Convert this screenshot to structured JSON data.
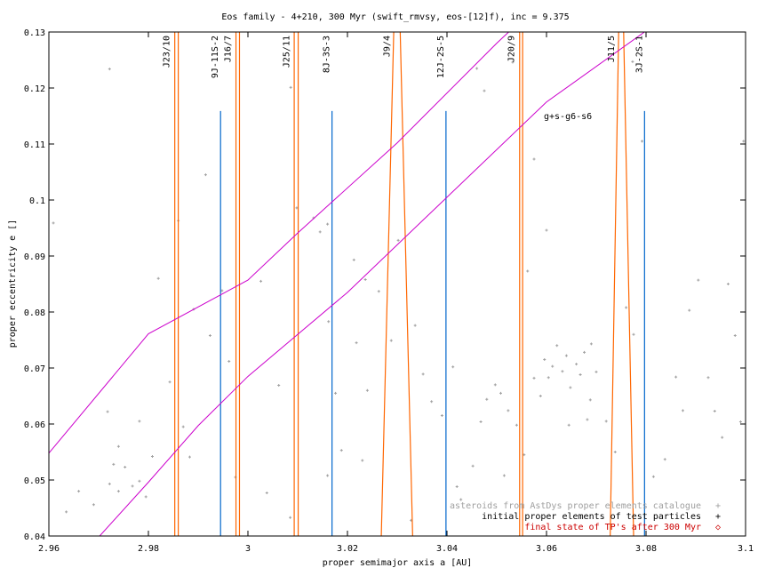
{
  "chart_data": {
    "type": "scatter",
    "title": "Eos family - 4+210, 300 Myr (swift_rmvsy, eos-[12]f), inc = 9.375",
    "xlabel": "proper semimajor axis a [AU]",
    "ylabel": "proper eccentricity e []",
    "xlim": [
      2.96,
      3.1
    ],
    "ylim": [
      0.04,
      0.13
    ],
    "x_ticks": [
      2.96,
      2.98,
      3.0,
      3.02,
      3.04,
      3.06,
      3.08,
      3.1
    ],
    "x_tick_labels": [
      "2.96",
      "2.98",
      "3",
      "3.02",
      "3.04",
      "3.06",
      "3.08",
      "3.1"
    ],
    "y_ticks": [
      0.04,
      0.05,
      0.06,
      0.07,
      0.08,
      0.09,
      0.1,
      0.11,
      0.12,
      0.13
    ],
    "y_tick_labels": [
      "0.04",
      "0.05",
      "0.06",
      "0.07",
      "0.08",
      "0.09",
      "0.1",
      "0.11",
      "0.12",
      "0.13"
    ],
    "grid": false,
    "legend_position": "bottom-right",
    "legend": [
      {
        "label": "asteroids from AstDys proper elements catalogue",
        "symbol": "+",
        "color": "#a0a0a0"
      },
      {
        "label": "initial proper elements of test particles",
        "symbol": "+",
        "color": "#000000"
      },
      {
        "label": "final state of TP's after 300 Myr",
        "symbol": "◇",
        "color": "#cc0000"
      }
    ],
    "resonances_three_body": [
      {
        "label": "9J-11S-2",
        "a": 2.9945,
        "e_max": 0.1159
      },
      {
        "label": "8J-3S-3",
        "a": 3.0169,
        "e_max": 0.1159
      },
      {
        "label": "12J-2S-5",
        "a": 3.0398,
        "e_max": 0.1159
      },
      {
        "label": "3J-2S-1",
        "a": 3.0797,
        "e_max": 0.1159
      }
    ],
    "resonances_mean_motion": [
      {
        "label": "J23/10",
        "a_left": [
          2.9853,
          2.9853
        ],
        "a_right": [
          2.986,
          2.986
        ]
      },
      {
        "label": "J16/7",
        "a_left": [
          2.9976,
          2.9976
        ],
        "a_right": [
          2.9983,
          2.9983
        ]
      },
      {
        "label": "J25/11",
        "a_left": [
          3.0093,
          3.0093
        ],
        "a_right": [
          3.0101,
          3.0101
        ]
      },
      {
        "label": "J9/4",
        "a_left": [
          3.0293,
          3.0268
        ],
        "a_right": [
          3.0306,
          3.0331
        ]
      },
      {
        "label": "J20/9",
        "a_left": [
          3.0546,
          3.0546
        ],
        "a_right": [
          3.0552,
          3.0552
        ]
      },
      {
        "label": "J11/5",
        "a_left": [
          3.0745,
          3.0728
        ],
        "a_right": [
          3.0755,
          3.0775
        ]
      }
    ],
    "secular_resonance": {
      "label": "g+s-g6-s6",
      "upper_curve": [
        [
          2.96,
          0.0548
        ],
        [
          2.98,
          0.0761
        ],
        [
          3.0,
          0.0857
        ],
        [
          3.01,
          0.0941
        ],
        [
          3.03,
          0.1102
        ],
        [
          3.05,
          0.128
        ],
        [
          3.053,
          0.1305
        ]
      ],
      "lower_curve": [
        [
          2.97,
          0.0398
        ],
        [
          2.98,
          0.0496
        ],
        [
          2.99,
          0.0597
        ],
        [
          3.0,
          0.0685
        ],
        [
          3.02,
          0.0835
        ],
        [
          3.04,
          0.1005
        ],
        [
          3.06,
          0.1175
        ],
        [
          3.08,
          0.1302
        ]
      ]
    },
    "asteroids": [
      [
        2.9609,
        0.0959
      ],
      [
        2.9635,
        0.0443
      ],
      [
        2.966,
        0.048
      ],
      [
        2.969,
        0.0456
      ],
      [
        2.9718,
        0.0622
      ],
      [
        2.9722,
        0.0493
      ],
      [
        2.974,
        0.056
      ],
      [
        2.9753,
        0.0523
      ],
      [
        2.9768,
        0.0489
      ],
      [
        2.9782,
        0.0605
      ],
      [
        2.9795,
        0.047
      ],
      [
        2.9808,
        0.0542
      ],
      [
        2.982,
        0.086
      ],
      [
        2.9843,
        0.0675
      ],
      [
        2.986,
        0.0963
      ],
      [
        2.987,
        0.0595
      ],
      [
        2.9883,
        0.0541
      ],
      [
        2.9891,
        0.0805
      ],
      [
        2.9915,
        0.1045
      ],
      [
        2.9924,
        0.0758
      ],
      [
        2.9948,
        0.0838
      ],
      [
        2.9962,
        0.0712
      ],
      [
        2.9975,
        0.0505
      ],
      [
        3.0026,
        0.0855
      ],
      [
        3.0038,
        0.0477
      ],
      [
        3.0062,
        0.0669
      ],
      [
        3.0085,
        0.0433
      ],
      [
        3.0098,
        0.0986
      ],
      [
        3.0132,
        0.0968
      ],
      [
        3.0145,
        0.0943
      ],
      [
        3.0162,
        0.0783
      ],
      [
        3.0176,
        0.0655
      ],
      [
        3.0188,
        0.0553
      ],
      [
        3.0213,
        0.0893
      ],
      [
        3.0236,
        0.0858
      ],
      [
        3.0263,
        0.0837
      ],
      [
        3.0288,
        0.0749
      ],
      [
        3.0302,
        0.0928
      ],
      [
        3.0336,
        0.0776
      ],
      [
        3.0352,
        0.0689
      ],
      [
        3.0369,
        0.064
      ],
      [
        3.039,
        0.0615
      ],
      [
        3.0412,
        0.0702
      ],
      [
        3.0428,
        0.0465
      ],
      [
        3.0452,
        0.0525
      ],
      [
        3.0468,
        0.0604
      ],
      [
        3.048,
        0.0644
      ],
      [
        3.0497,
        0.067
      ],
      [
        3.0508,
        0.0655
      ],
      [
        3.0523,
        0.0624
      ],
      [
        3.054,
        0.0598
      ],
      [
        3.0562,
        0.0873
      ],
      [
        3.0575,
        0.0682
      ],
      [
        3.0588,
        0.065
      ],
      [
        3.0596,
        0.0715
      ],
      [
        3.0604,
        0.0683
      ],
      [
        3.0612,
        0.0703
      ],
      [
        3.0621,
        0.074
      ],
      [
        3.0632,
        0.0694
      ],
      [
        3.064,
        0.0722
      ],
      [
        3.0648,
        0.0665
      ],
      [
        3.066,
        0.0707
      ],
      [
        3.0668,
        0.0688
      ],
      [
        3.0676,
        0.0728
      ],
      [
        3.0688,
        0.0643
      ],
      [
        3.07,
        0.0693
      ],
      [
        3.072,
        0.0605
      ],
      [
        3.0738,
        0.055
      ],
      [
        3.076,
        0.0808
      ],
      [
        3.0775,
        0.076
      ],
      [
        3.0792,
        0.1105
      ],
      [
        3.0815,
        0.0506
      ],
      [
        3.0838,
        0.0537
      ],
      [
        3.086,
        0.0684
      ],
      [
        3.0874,
        0.0624
      ],
      [
        3.0887,
        0.0803
      ],
      [
        3.0905,
        0.0857
      ],
      [
        3.0925,
        0.0683
      ],
      [
        3.0938,
        0.0623
      ],
      [
        3.0953,
        0.0576
      ],
      [
        3.0965,
        0.085
      ],
      [
        3.0979,
        0.0758
      ],
      [
        3.099,
        0.0604
      ],
      [
        3.0996,
        0.1105
      ],
      [
        3.06,
        0.0946
      ],
      [
        3.0575,
        0.1073
      ],
      [
        3.072,
        0.1302
      ],
      [
        3.0773,
        0.1247
      ],
      [
        2.9782,
        0.0498
      ],
      [
        2.974,
        0.048
      ],
      [
        2.973,
        0.0528
      ],
      [
        3.023,
        0.0535
      ],
      [
        3.016,
        0.0508
      ],
      [
        3.0328,
        0.0428
      ],
      [
        3.042,
        0.0488
      ],
      [
        3.046,
        0.1235
      ],
      [
        3.0475,
        0.1195
      ],
      [
        3.0532,
        0.1246
      ],
      [
        2.9722,
        0.1234
      ],
      [
        3.0086,
        0.1201
      ],
      [
        3.016,
        0.0957
      ],
      [
        3.0218,
        0.0745
      ],
      [
        3.024,
        0.066
      ],
      [
        3.0515,
        0.0508
      ],
      [
        3.0555,
        0.0545
      ],
      [
        3.0682,
        0.0608
      ],
      [
        3.069,
        0.0743
      ],
      [
        3.0645,
        0.0598
      ]
    ]
  }
}
